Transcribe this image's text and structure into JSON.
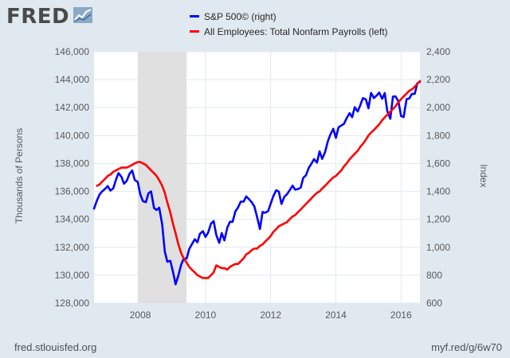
{
  "header": {
    "logo_text": "FRED",
    "logo_icon": "fred-line-graph-icon"
  },
  "legend": {
    "items": [
      {
        "label": "S&P 500© (right)",
        "color": "#0000ff"
      },
      {
        "label": "All Employees: Total Nonfarm Payrolls (left)",
        "color": "#ff0000"
      }
    ]
  },
  "footer": {
    "source": "fred.stlouisfed.org",
    "short_link": "myf.red/g/6w70"
  },
  "chart_data": {
    "type": "line",
    "title": "",
    "left_axis": {
      "label": "Thousands of Persons",
      "range": [
        128000,
        146000
      ],
      "ticks": [
        "128,000",
        "130,000",
        "132,000",
        "134,000",
        "136,000",
        "138,000",
        "140,000",
        "142,000",
        "144,000",
        "146,000"
      ]
    },
    "right_axis": {
      "label": "Index",
      "range": [
        600,
        2400
      ],
      "ticks": [
        "600",
        "800",
        "1,000",
        "1,200",
        "1,400",
        "1,600",
        "1,800",
        "2,000",
        "2,200",
        "2,400"
      ]
    },
    "x_axis": {
      "range": [
        2006.58,
        2016.58
      ],
      "ticks": [
        "2008",
        "2010",
        "2012",
        "2014",
        "2016"
      ]
    },
    "grid": true,
    "recession_shading": [
      2007.92,
      2009.42
    ],
    "series": [
      {
        "name": "S&P 500© (right)",
        "axis": "right",
        "color": "#0000ff",
        "points": [
          [
            2006.58,
            1276
          ],
          [
            2006.67,
            1336
          ],
          [
            2006.75,
            1378
          ],
          [
            2006.83,
            1400
          ],
          [
            2006.92,
            1418
          ],
          [
            2007.0,
            1438
          ],
          [
            2007.08,
            1406
          ],
          [
            2007.17,
            1421
          ],
          [
            2007.25,
            1482
          ],
          [
            2007.33,
            1531
          ],
          [
            2007.42,
            1504
          ],
          [
            2007.5,
            1455
          ],
          [
            2007.58,
            1474
          ],
          [
            2007.67,
            1527
          ],
          [
            2007.75,
            1549
          ],
          [
            2007.83,
            1481
          ],
          [
            2007.92,
            1468
          ],
          [
            2008.0,
            1378
          ],
          [
            2008.08,
            1330
          ],
          [
            2008.17,
            1322
          ],
          [
            2008.25,
            1386
          ],
          [
            2008.33,
            1400
          ],
          [
            2008.42,
            1280
          ],
          [
            2008.5,
            1267
          ],
          [
            2008.58,
            1283
          ],
          [
            2008.67,
            1165
          ],
          [
            2008.75,
            969
          ],
          [
            2008.83,
            896
          ],
          [
            2008.92,
            903
          ],
          [
            2009.0,
            826
          ],
          [
            2009.08,
            735
          ],
          [
            2009.17,
            798
          ],
          [
            2009.25,
            873
          ],
          [
            2009.33,
            919
          ],
          [
            2009.42,
            919
          ],
          [
            2009.5,
            987
          ],
          [
            2009.58,
            1021
          ],
          [
            2009.67,
            1057
          ],
          [
            2009.75,
            1036
          ],
          [
            2009.83,
            1096
          ],
          [
            2009.92,
            1115
          ],
          [
            2010.0,
            1074
          ],
          [
            2010.08,
            1104
          ],
          [
            2010.17,
            1169
          ],
          [
            2010.25,
            1187
          ],
          [
            2010.33,
            1089
          ],
          [
            2010.42,
            1031
          ],
          [
            2010.5,
            1102
          ],
          [
            2010.58,
            1049
          ],
          [
            2010.67,
            1141
          ],
          [
            2010.75,
            1183
          ],
          [
            2010.83,
            1181
          ],
          [
            2010.92,
            1258
          ],
          [
            2011.0,
            1286
          ],
          [
            2011.08,
            1327
          ],
          [
            2011.17,
            1326
          ],
          [
            2011.25,
            1364
          ],
          [
            2011.33,
            1345
          ],
          [
            2011.42,
            1321
          ],
          [
            2011.5,
            1292
          ],
          [
            2011.58,
            1219
          ],
          [
            2011.67,
            1131
          ],
          [
            2011.75,
            1253
          ],
          [
            2011.83,
            1247
          ],
          [
            2011.92,
            1258
          ],
          [
            2012.0,
            1312
          ],
          [
            2012.08,
            1366
          ],
          [
            2012.17,
            1408
          ],
          [
            2012.25,
            1398
          ],
          [
            2012.33,
            1310
          ],
          [
            2012.42,
            1362
          ],
          [
            2012.5,
            1379
          ],
          [
            2012.58,
            1407
          ],
          [
            2012.67,
            1441
          ],
          [
            2012.75,
            1412
          ],
          [
            2012.83,
            1416
          ],
          [
            2012.92,
            1426
          ],
          [
            2013.0,
            1498
          ],
          [
            2013.08,
            1515
          ],
          [
            2013.17,
            1569
          ],
          [
            2013.25,
            1598
          ],
          [
            2013.33,
            1631
          ],
          [
            2013.42,
            1606
          ],
          [
            2013.5,
            1686
          ],
          [
            2013.58,
            1633
          ],
          [
            2013.67,
            1682
          ],
          [
            2013.75,
            1757
          ],
          [
            2013.83,
            1806
          ],
          [
            2013.92,
            1848
          ],
          [
            2014.0,
            1783
          ],
          [
            2014.08,
            1859
          ],
          [
            2014.17,
            1872
          ],
          [
            2014.25,
            1884
          ],
          [
            2014.33,
            1924
          ],
          [
            2014.42,
            1960
          ],
          [
            2014.5,
            1931
          ],
          [
            2014.58,
            2003
          ],
          [
            2014.67,
            1972
          ],
          [
            2014.75,
            2018
          ],
          [
            2014.83,
            2068
          ],
          [
            2014.92,
            2059
          ],
          [
            2015.0,
            1995
          ],
          [
            2015.08,
            2105
          ],
          [
            2015.17,
            2068
          ],
          [
            2015.25,
            2086
          ],
          [
            2015.33,
            2107
          ],
          [
            2015.42,
            2063
          ],
          [
            2015.5,
            2104
          ],
          [
            2015.58,
            1972
          ],
          [
            2015.67,
            1920
          ],
          [
            2015.75,
            2079
          ],
          [
            2015.83,
            2080
          ],
          [
            2015.92,
            2044
          ],
          [
            2016.0,
            1940
          ],
          [
            2016.08,
            1932
          ],
          [
            2016.17,
            2060
          ],
          [
            2016.25,
            2065
          ],
          [
            2016.33,
            2097
          ],
          [
            2016.42,
            2099
          ],
          [
            2016.5,
            2174
          ],
          [
            2016.58,
            2184
          ]
        ]
      },
      {
        "name": "All Employees: Total Nonfarm Payrolls (left)",
        "axis": "left",
        "color": "#ff0000",
        "points": [
          [
            2006.67,
            136400
          ],
          [
            2006.75,
            136500
          ],
          [
            2006.83,
            136700
          ],
          [
            2006.92,
            136900
          ],
          [
            2007.0,
            137100
          ],
          [
            2007.08,
            137200
          ],
          [
            2007.17,
            137400
          ],
          [
            2007.25,
            137500
          ],
          [
            2007.33,
            137600
          ],
          [
            2007.42,
            137700
          ],
          [
            2007.5,
            137700
          ],
          [
            2007.58,
            137700
          ],
          [
            2007.67,
            137800
          ],
          [
            2007.75,
            137900
          ],
          [
            2007.83,
            138000
          ],
          [
            2007.92,
            138100
          ],
          [
            2008.0,
            138100
          ],
          [
            2008.08,
            138000
          ],
          [
            2008.17,
            137900
          ],
          [
            2008.25,
            137700
          ],
          [
            2008.33,
            137500
          ],
          [
            2008.42,
            137300
          ],
          [
            2008.5,
            137100
          ],
          [
            2008.58,
            136800
          ],
          [
            2008.67,
            136400
          ],
          [
            2008.75,
            135900
          ],
          [
            2008.83,
            135200
          ],
          [
            2008.92,
            134500
          ],
          [
            2009.0,
            133700
          ],
          [
            2009.08,
            133000
          ],
          [
            2009.17,
            132200
          ],
          [
            2009.25,
            131600
          ],
          [
            2009.33,
            131200
          ],
          [
            2009.42,
            130900
          ],
          [
            2009.5,
            130600
          ],
          [
            2009.58,
            130400
          ],
          [
            2009.67,
            130200
          ],
          [
            2009.75,
            130000
          ],
          [
            2009.83,
            129900
          ],
          [
            2009.92,
            129800
          ],
          [
            2010.0,
            129800
          ],
          [
            2010.08,
            129800
          ],
          [
            2010.17,
            130000
          ],
          [
            2010.25,
            130200
          ],
          [
            2010.33,
            130700
          ],
          [
            2010.42,
            130600
          ],
          [
            2010.5,
            130500
          ],
          [
            2010.58,
            130500
          ],
          [
            2010.67,
            130400
          ],
          [
            2010.75,
            130600
          ],
          [
            2010.83,
            130700
          ],
          [
            2010.92,
            130800
          ],
          [
            2011.0,
            130800
          ],
          [
            2011.08,
            131000
          ],
          [
            2011.17,
            131200
          ],
          [
            2011.25,
            131500
          ],
          [
            2011.33,
            131600
          ],
          [
            2011.42,
            131800
          ],
          [
            2011.5,
            131900
          ],
          [
            2011.58,
            131900
          ],
          [
            2011.67,
            132100
          ],
          [
            2011.75,
            132200
          ],
          [
            2011.83,
            132400
          ],
          [
            2011.92,
            132600
          ],
          [
            2012.0,
            132800
          ],
          [
            2012.08,
            133100
          ],
          [
            2012.17,
            133300
          ],
          [
            2012.25,
            133500
          ],
          [
            2012.33,
            133600
          ],
          [
            2012.42,
            133700
          ],
          [
            2012.5,
            133800
          ],
          [
            2012.58,
            134000
          ],
          [
            2012.67,
            134200
          ],
          [
            2012.75,
            134300
          ],
          [
            2012.83,
            134500
          ],
          [
            2012.92,
            134700
          ],
          [
            2013.0,
            134900
          ],
          [
            2013.08,
            135100
          ],
          [
            2013.17,
            135300
          ],
          [
            2013.25,
            135500
          ],
          [
            2013.33,
            135700
          ],
          [
            2013.42,
            135900
          ],
          [
            2013.5,
            136000
          ],
          [
            2013.58,
            136200
          ],
          [
            2013.67,
            136400
          ],
          [
            2013.75,
            136600
          ],
          [
            2013.83,
            136800
          ],
          [
            2013.92,
            137000
          ],
          [
            2014.0,
            137100
          ],
          [
            2014.08,
            137300
          ],
          [
            2014.17,
            137500
          ],
          [
            2014.25,
            137800
          ],
          [
            2014.33,
            138000
          ],
          [
            2014.42,
            138300
          ],
          [
            2014.5,
            138500
          ],
          [
            2014.58,
            138700
          ],
          [
            2014.67,
            138900
          ],
          [
            2014.75,
            139200
          ],
          [
            2014.83,
            139400
          ],
          [
            2014.92,
            139700
          ],
          [
            2015.0,
            140000
          ],
          [
            2015.08,
            140200
          ],
          [
            2015.17,
            140400
          ],
          [
            2015.25,
            140600
          ],
          [
            2015.33,
            140800
          ],
          [
            2015.42,
            141100
          ],
          [
            2015.5,
            141300
          ],
          [
            2015.58,
            141500
          ],
          [
            2015.67,
            141700
          ],
          [
            2015.75,
            141900
          ],
          [
            2015.83,
            142100
          ],
          [
            2015.92,
            142400
          ],
          [
            2016.0,
            142600
          ],
          [
            2016.08,
            142800
          ],
          [
            2016.17,
            143000
          ],
          [
            2016.25,
            143200
          ],
          [
            2016.33,
            143300
          ],
          [
            2016.42,
            143500
          ],
          [
            2016.5,
            143700
          ],
          [
            2016.58,
            143900
          ]
        ]
      }
    ]
  }
}
